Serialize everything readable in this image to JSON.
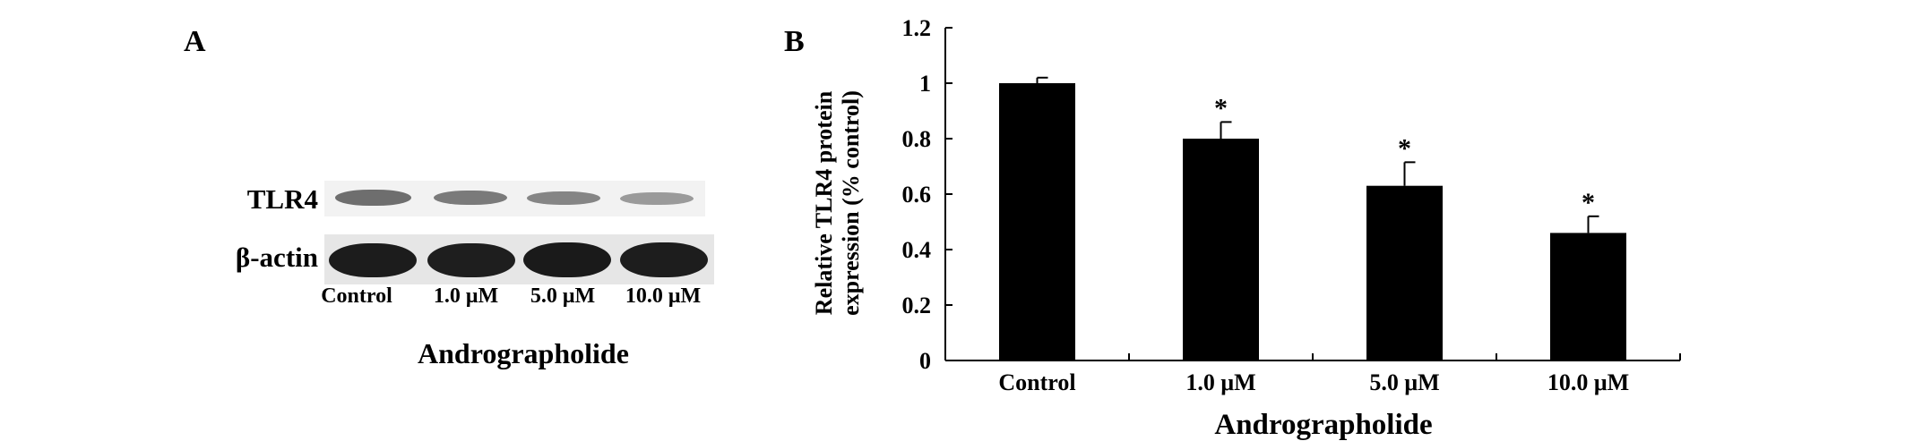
{
  "panel_a": {
    "letter": "A",
    "blot_rows": [
      {
        "label": "TLR4"
      },
      {
        "label": "β-actin"
      }
    ],
    "lanes": [
      "Control",
      "1.0 μM",
      "5.0 μM",
      "10.0 μM"
    ],
    "xlabel": "Andrographolide"
  },
  "panel_b": {
    "letter": "B"
  },
  "chart_data": {
    "type": "bar",
    "categories": [
      "Control",
      "1.0 μM",
      "5.0 μM",
      "10.0 μM"
    ],
    "values": [
      1.0,
      0.8,
      0.63,
      0.46
    ],
    "error": [
      0.02,
      0.06,
      0.085,
      0.06
    ],
    "significance": [
      "",
      "*",
      "*",
      "*"
    ],
    "title": "",
    "xlabel": "Andrographolide",
    "ylabel": "Relative TLR4 protein expression (% control)",
    "ylabel_lines": [
      "Relative TLR4 protein",
      "expression (% control)"
    ],
    "ylim": [
      0,
      1.2
    ],
    "yticks": [
      "0",
      "0.2",
      "0.4",
      "0.6",
      "0.8",
      "1",
      "1.2"
    ],
    "bar_color": "#000000",
    "grid": false
  }
}
